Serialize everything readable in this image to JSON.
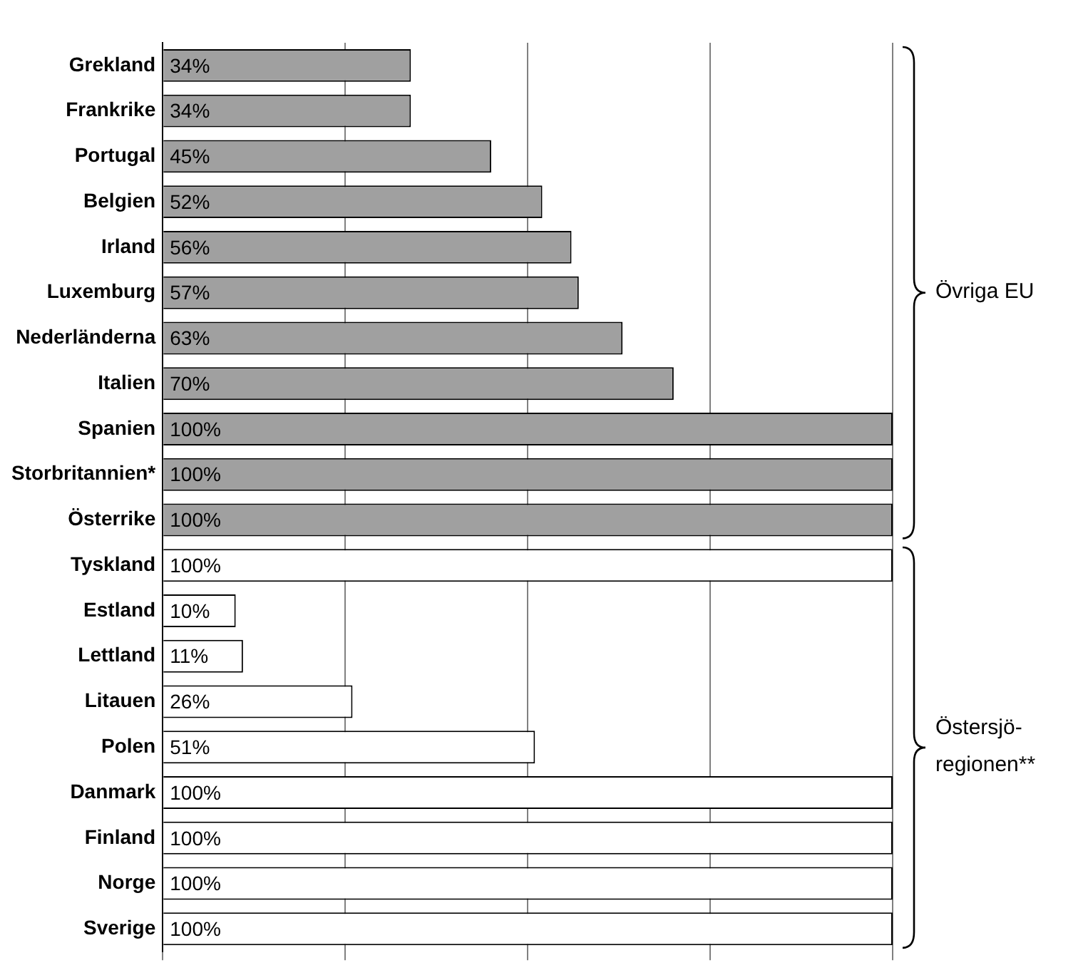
{
  "chart_data": {
    "type": "bar",
    "orientation": "horizontal",
    "relative": false,
    "categories": [
      "Grekland",
      "Frankrike",
      "Portugal",
      "Belgien",
      "Irland",
      "Luxemburg",
      "Nederländerna",
      "Italien",
      "Spanien",
      "Storbritannien*",
      "Österrike",
      "Tyskland",
      "Estland",
      "Lettland",
      "Litauen",
      "Polen",
      "Danmark",
      "Finland",
      "Norge",
      "Sverige"
    ],
    "values": [
      34,
      34,
      45,
      52,
      56,
      57,
      63,
      70,
      100,
      100,
      100,
      100,
      10,
      11,
      26,
      51,
      100,
      100,
      100,
      100
    ],
    "value_labels": [
      "34%",
      "34%",
      "45%",
      "52%",
      "56%",
      "57%",
      "63%",
      "70%",
      "100%",
      "100%",
      "100%",
      "100%",
      "10%",
      "11%",
      "26%",
      "51%",
      "100%",
      "100%",
      "100%",
      "100%"
    ],
    "colors": [
      "#a0a0a0",
      "#a0a0a0",
      "#a0a0a0",
      "#a0a0a0",
      "#a0a0a0",
      "#a0a0a0",
      "#a0a0a0",
      "#a0a0a0",
      "#a0a0a0",
      "#a0a0a0",
      "#a0a0a0",
      "#ffffff",
      "#ffffff",
      "#ffffff",
      "#ffffff",
      "#ffffff",
      "#ffffff",
      "#ffffff",
      "#ffffff",
      "#ffffff"
    ],
    "xlim": [
      0,
      100
    ],
    "xticks": [
      {
        "value": 0,
        "label": null
      },
      {
        "value": 25,
        "label": null
      },
      {
        "value": 50,
        "label": null
      },
      {
        "value": 75,
        "label": null
      },
      {
        "value": 100,
        "label": null
      }
    ],
    "tick_labels": "y",
    "grid": "x",
    "legend": false,
    "annotations": [
      "Övriga EU",
      "Östersjö-regionen**"
    ]
  }
}
